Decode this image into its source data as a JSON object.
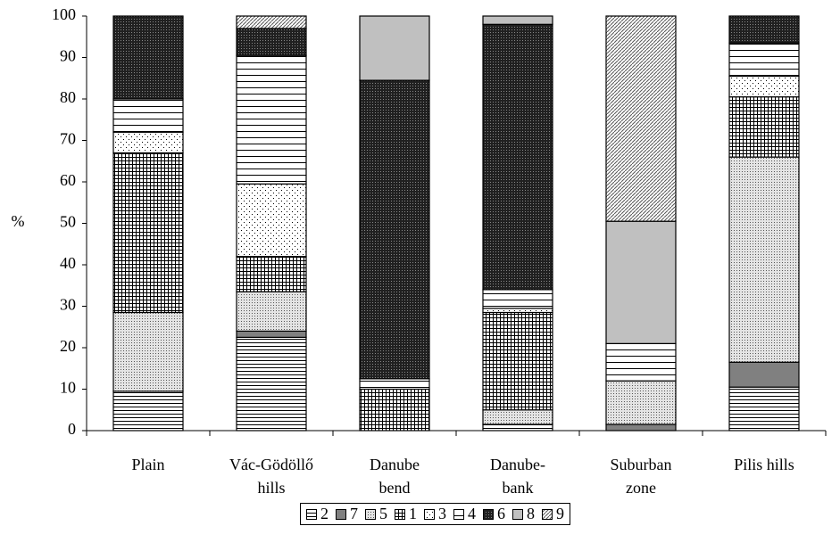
{
  "chart_data": {
    "type": "stacked-bar",
    "y_label": "%",
    "categories": [
      "Plain",
      "Vác-Gödöllő\nhills",
      "Danube\nbend",
      "Danube-bank",
      "Suburban\nzone",
      "Pilis hills"
    ],
    "series": [
      {
        "name": "2",
        "color": "#ffffff",
        "values": [
          9.5,
          22.5,
          0,
          1.5,
          0,
          10.5
        ]
      },
      {
        "name": "7",
        "color": "#808080",
        "values": [
          0,
          1.5,
          0,
          0,
          1.5,
          6
        ]
      },
      {
        "name": "5",
        "color": "#d0d0d0",
        "values": [
          19,
          9.5,
          0,
          3.5,
          10.5,
          49.5
        ]
      },
      {
        "name": "1",
        "color": "#ffffff",
        "values": [
          38.5,
          8.5,
          10,
          23.5,
          0,
          14.5
        ]
      },
      {
        "name": "3",
        "color": "#ffffff",
        "values": [
          5,
          17.5,
          0,
          1,
          0,
          5
        ]
      },
      {
        "name": "4",
        "color": "#ffffff",
        "values": [
          8,
          31,
          2.5,
          4.5,
          9,
          8
        ]
      },
      {
        "name": "6",
        "color": "#202020",
        "values": [
          20,
          6.5,
          72,
          64,
          0,
          6.5
        ]
      },
      {
        "name": "8",
        "color": "#c0c0c0",
        "values": [
          0,
          0,
          15.5,
          2,
          29.5,
          0
        ]
      },
      {
        "name": "9",
        "color": "#ffffff",
        "values": [
          0,
          3,
          0,
          0,
          49.5,
          0
        ]
      }
    ],
    "ylim": [
      0,
      100
    ],
    "yticks": [
      0,
      10,
      20,
      30,
      40,
      50,
      60,
      70,
      80,
      90,
      100
    ]
  }
}
